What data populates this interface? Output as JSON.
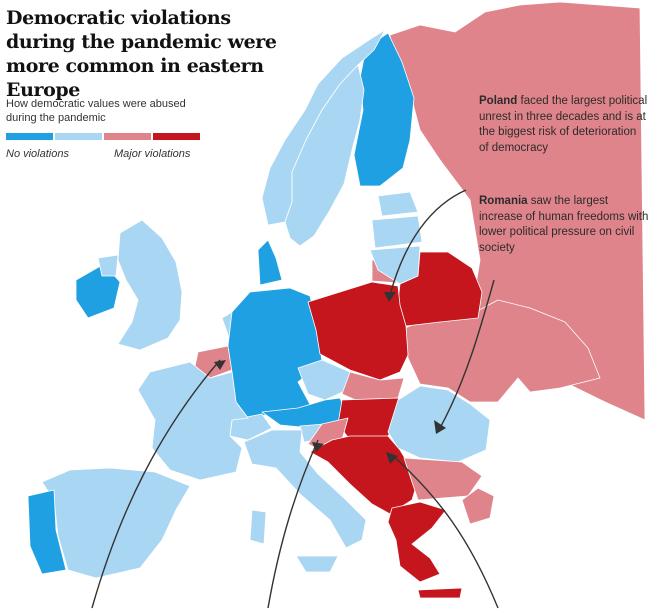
{
  "title": "Democratic violations during the pandemic were more common in eastern Europe",
  "legend": {
    "subtitle": "How democratic values were abused during the pandemic",
    "low_label": "No violations",
    "high_label": "Major violations",
    "colors": [
      "#1fa0e2",
      "#a9d6f2",
      "#e0848b",
      "#c4161c"
    ]
  },
  "annotations": [
    {
      "country": "Poland",
      "text": "faced the largest political unrest in three decades and is at the biggest risk of deterioration of democracy"
    },
    {
      "country": "Romania",
      "text": "saw the largest increase of human freedoms with lower political pressure on civil society"
    }
  ],
  "countries": [
    {
      "name": "Russia",
      "level": 3
    },
    {
      "name": "Ukraine",
      "level": 3
    },
    {
      "name": "Belarus",
      "level": 4
    },
    {
      "name": "Poland",
      "level": 4
    },
    {
      "name": "Hungary",
      "level": 4
    },
    {
      "name": "Serbia",
      "level": 4
    },
    {
      "name": "Greece",
      "level": 4
    },
    {
      "name": "Croatia",
      "level": 3
    },
    {
      "name": "Slovakia",
      "level": 3
    },
    {
      "name": "Bulgaria",
      "level": 3
    },
    {
      "name": "Belgium",
      "level": 3
    },
    {
      "name": "Turkey",
      "level": 3
    },
    {
      "name": "Germany",
      "level": 1
    },
    {
      "name": "Denmark",
      "level": 1
    },
    {
      "name": "Finland",
      "level": 1
    },
    {
      "name": "Ireland",
      "level": 1
    },
    {
      "name": "Austria",
      "level": 1
    },
    {
      "name": "Portugal",
      "level": 1
    },
    {
      "name": "Norway",
      "level": 2
    },
    {
      "name": "Sweden",
      "level": 2
    },
    {
      "name": "United Kingdom",
      "level": 2
    },
    {
      "name": "France",
      "level": 2
    },
    {
      "name": "Spain",
      "level": 2
    },
    {
      "name": "Italy",
      "level": 2
    },
    {
      "name": "Czech Republic",
      "level": 2
    },
    {
      "name": "Romania",
      "level": 2
    },
    {
      "name": "Lithuania",
      "level": 2
    },
    {
      "name": "Latvia",
      "level": 2
    },
    {
      "name": "Estonia",
      "level": 2
    },
    {
      "name": "Switzerland",
      "level": 2
    },
    {
      "name": "Netherlands",
      "level": 2
    },
    {
      "name": "Slovenia",
      "level": 2
    }
  ]
}
